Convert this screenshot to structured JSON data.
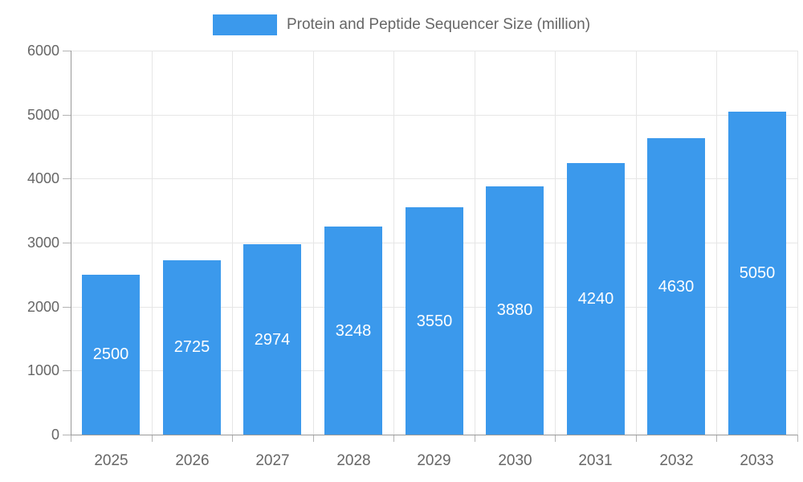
{
  "chart_data": {
    "type": "bar",
    "title": "Protein and Peptide Sequencer Size (million)",
    "legend_entries": [
      "Protein and Peptide Sequencer Size (million)"
    ],
    "legend_position": "top-center",
    "categories": [
      "2025",
      "2026",
      "2027",
      "2028",
      "2029",
      "2030",
      "2031",
      "2032",
      "2033"
    ],
    "values": [
      2500,
      2725,
      2974,
      3248,
      3550,
      3880,
      4240,
      4630,
      5050
    ],
    "xlabel": "",
    "ylabel": "",
    "ylim": [
      0,
      6000
    ],
    "ytick_step": 1000,
    "ytick_labels": [
      "0",
      "1000",
      "2000",
      "3000",
      "4000",
      "5000",
      "6000"
    ],
    "grid": true,
    "value_label_placement": "inside-center",
    "colors": {
      "bar": "#3B99EC",
      "grid": "#E6E6E6",
      "axis": "#999999",
      "tick": "#B3B3B3",
      "text": "#666666",
      "value_label": "#FFFFFF",
      "background": "#FFFFFF"
    }
  }
}
